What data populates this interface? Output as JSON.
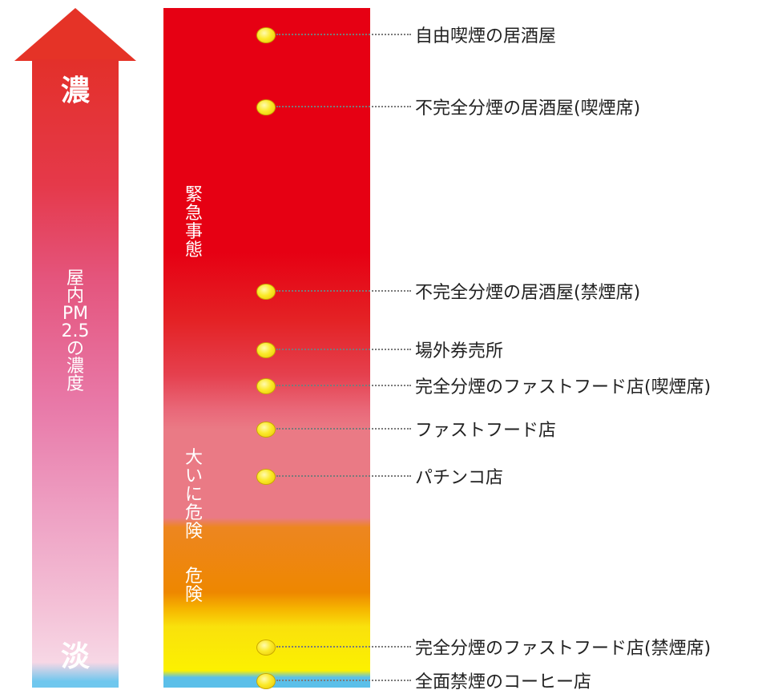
{
  "arrow": {
    "top_label": "濃",
    "bottom_label": "淡",
    "axis_label_chars": [
      "屋",
      "内",
      "PM",
      "2.5",
      "の",
      "濃",
      "度"
    ]
  },
  "zones": [
    {
      "label_chars": [
        "緊",
        "急",
        "事",
        "態"
      ],
      "color": "#e60013"
    },
    {
      "label_chars": [
        "大",
        "い",
        "に",
        "危",
        "険"
      ],
      "color": "#ea7a85"
    },
    {
      "label_chars": [
        "危",
        "険"
      ],
      "color": "#ee8700"
    }
  ],
  "colors": {
    "red": "#e60013",
    "pink": "#ea7a85",
    "orange": "#ee8700",
    "yellow": "#fcf100",
    "blue": "#5bbfe9",
    "dot": "#fbea2a"
  },
  "places": [
    "自由喫煙の居酒屋",
    "不完全分煙の居酒屋(喫煙席)",
    "不完全分煙の居酒屋(禁煙席)",
    "場外券売所",
    "完全分煙のファストフード店(喫煙席)",
    "ファストフード店",
    "パチンコ店",
    "完全分煙のファストフード店(禁煙席)",
    "全面禁煙のコーヒー店"
  ]
}
